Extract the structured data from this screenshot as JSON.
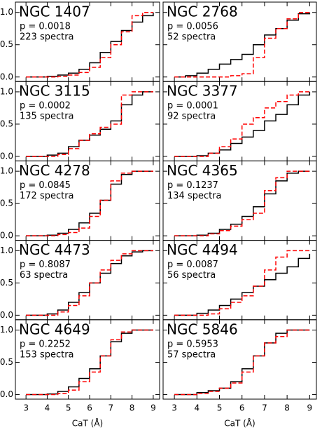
{
  "chart_data": [
    {
      "type": "line",
      "title": "NGC 1407",
      "annotations": [
        "p = 0.0018",
        "223 spectra"
      ],
      "x": [
        3,
        3.5,
        4,
        4.5,
        5,
        5.5,
        6,
        6.5,
        7,
        7.5,
        8,
        8.5,
        9
      ],
      "xlim": [
        2.5,
        9.3
      ],
      "ylim": [
        -0.07,
        1.16
      ],
      "xticks": [
        3,
        4,
        5,
        6,
        7,
        8,
        9
      ],
      "yticks": [
        {
          "value": 0,
          "label": "0.0"
        },
        {
          "value": 0.5,
          "label": "0.5"
        },
        {
          "value": 1,
          "label": "1.0"
        }
      ],
      "series": [
        {
          "color": "#000000",
          "linestyle": "solid",
          "values": [
            0,
            0,
            0.01,
            0.03,
            0.06,
            0.12,
            0.22,
            0.38,
            0.55,
            0.72,
            0.85,
            0.95,
            1
          ]
        },
        {
          "color": "#ff0000",
          "linestyle": "dashed",
          "values": [
            0,
            0,
            0,
            0.01,
            0.03,
            0.07,
            0.15,
            0.3,
            0.5,
            0.7,
            0.95,
            1,
            1
          ]
        }
      ]
    },
    {
      "type": "line",
      "title": "NGC 2768",
      "annotations": [
        "p = 0.0056",
        "52 spectra"
      ],
      "x": [
        3,
        3.5,
        4,
        4.5,
        5,
        5.5,
        6,
        6.5,
        7,
        7.5,
        8,
        8.5,
        9
      ],
      "xlim": [
        2.5,
        9.3
      ],
      "ylim": [
        -0.07,
        1.16
      ],
      "xticks": [
        3,
        4,
        5,
        6,
        7,
        8,
        9
      ],
      "yticks": [
        0,
        0.5,
        1
      ],
      "series": [
        {
          "color": "#000000",
          "linestyle": "solid",
          "values": [
            0,
            0.02,
            0.06,
            0.12,
            0.2,
            0.27,
            0.35,
            0.5,
            0.65,
            0.75,
            0.88,
            0.98,
            1
          ]
        },
        {
          "color": "#ff0000",
          "linestyle": "dashed",
          "values": [
            0,
            0,
            0,
            0,
            0,
            0.02,
            0.05,
            0.3,
            0.6,
            0.75,
            0.9,
            1,
            1
          ]
        }
      ]
    },
    {
      "type": "line",
      "title": "NGC 3115",
      "annotations": [
        "p = 0.0002",
        "135 spectra"
      ],
      "x": [
        3,
        3.5,
        4,
        4.5,
        5,
        5.5,
        6,
        6.5,
        7,
        7.5,
        8,
        8.5,
        9
      ],
      "xlim": [
        2.5,
        9.3
      ],
      "ylim": [
        -0.07,
        1.16
      ],
      "xticks": [
        3,
        4,
        5,
        6,
        7,
        8,
        9
      ],
      "yticks": [
        {
          "value": 0,
          "label": "0.0"
        },
        {
          "value": 0.5,
          "label": "0.5"
        },
        {
          "value": 1,
          "label": "1.0"
        }
      ],
      "series": [
        {
          "color": "#000000",
          "linestyle": "solid",
          "values": [
            0,
            0,
            0.02,
            0.05,
            0.15,
            0.25,
            0.33,
            0.42,
            0.55,
            0.8,
            0.95,
            1,
            1
          ]
        },
        {
          "color": "#ff0000",
          "linestyle": "dashed",
          "values": [
            0,
            0,
            0,
            0.03,
            0.12,
            0.25,
            0.35,
            0.45,
            0.5,
            0.95,
            1,
            1,
            1
          ]
        }
      ]
    },
    {
      "type": "line",
      "title": "NGC 3377",
      "annotations": [
        "p = 0.0001",
        "92 spectra"
      ],
      "x": [
        3,
        3.5,
        4,
        4.5,
        5,
        5.5,
        6,
        6.5,
        7,
        7.5,
        8,
        8.5,
        9
      ],
      "xlim": [
        2.5,
        9.3
      ],
      "ylim": [
        -0.07,
        1.16
      ],
      "xticks": [
        3,
        4,
        5,
        6,
        7,
        8,
        9
      ],
      "yticks": [
        0,
        0.5,
        1
      ],
      "series": [
        {
          "color": "#000000",
          "linestyle": "solid",
          "values": [
            0,
            0,
            0.01,
            0.05,
            0.1,
            0.2,
            0.3,
            0.4,
            0.55,
            0.65,
            0.8,
            0.95,
            1
          ]
        },
        {
          "color": "#ff0000",
          "linestyle": "dashed",
          "values": [
            0,
            0,
            0,
            0.05,
            0.15,
            0.27,
            0.5,
            0.6,
            0.75,
            0.85,
            0.95,
            1,
            1
          ]
        }
      ]
    },
    {
      "type": "line",
      "title": "NGC 4278",
      "annotations": [
        "p = 0.0845",
        "172 spectra"
      ],
      "x": [
        3,
        3.5,
        4,
        4.5,
        5,
        5.5,
        6,
        6.5,
        7,
        7.5,
        8,
        8.5,
        9
      ],
      "xlim": [
        2.5,
        9.3
      ],
      "ylim": [
        -0.07,
        1.16
      ],
      "xticks": [
        3,
        4,
        5,
        6,
        7,
        8,
        9
      ],
      "yticks": [
        {
          "value": 0,
          "label": "0.0"
        },
        {
          "value": 0.5,
          "label": "0.5"
        },
        {
          "value": 1,
          "label": "1.0"
        }
      ],
      "series": [
        {
          "color": "#000000",
          "linestyle": "solid",
          "values": [
            0,
            0,
            0.01,
            0.04,
            0.1,
            0.2,
            0.35,
            0.55,
            0.8,
            0.95,
            1,
            1,
            1
          ]
        },
        {
          "color": "#ff0000",
          "linestyle": "dashed",
          "values": [
            0,
            0,
            0,
            0.02,
            0.05,
            0.12,
            0.3,
            0.55,
            0.85,
            0.97,
            1,
            1,
            1
          ]
        }
      ]
    },
    {
      "type": "line",
      "title": "NGC 4365",
      "annotations": [
        "p = 0.1237",
        "134 spectra"
      ],
      "x": [
        3,
        3.5,
        4,
        4.5,
        5,
        5.5,
        6,
        6.5,
        7,
        7.5,
        8,
        8.5,
        9
      ],
      "xlim": [
        2.5,
        9.3
      ],
      "ylim": [
        -0.07,
        1.16
      ],
      "xticks": [
        3,
        4,
        5,
        6,
        7,
        8,
        9
      ],
      "yticks": [
        0,
        0.5,
        1
      ],
      "series": [
        {
          "color": "#000000",
          "linestyle": "solid",
          "values": [
            0,
            0,
            0.01,
            0.04,
            0.1,
            0.18,
            0.3,
            0.45,
            0.65,
            0.85,
            0.97,
            1,
            1
          ]
        },
        {
          "color": "#ff0000",
          "linestyle": "dashed",
          "values": [
            0,
            0,
            0,
            0.03,
            0.08,
            0.15,
            0.25,
            0.35,
            0.7,
            0.9,
            1,
            1,
            1
          ]
        }
      ]
    },
    {
      "type": "line",
      "title": "NGC 4473",
      "annotations": [
        "p = 0.8087",
        "63 spectra"
      ],
      "x": [
        3,
        3.5,
        4,
        4.5,
        5,
        5.5,
        6,
        6.5,
        7,
        7.5,
        8,
        8.5,
        9
      ],
      "xlim": [
        2.5,
        9.3
      ],
      "ylim": [
        -0.07,
        1.16
      ],
      "xticks": [
        3,
        4,
        5,
        6,
        7,
        8,
        9
      ],
      "yticks": [
        {
          "value": 0,
          "label": "0.0"
        },
        {
          "value": 0.5,
          "label": "0.5"
        },
        {
          "value": 1,
          "label": "1.0"
        }
      ],
      "series": [
        {
          "color": "#000000",
          "linestyle": "solid",
          "values": [
            0,
            0,
            0.02,
            0.08,
            0.2,
            0.35,
            0.5,
            0.65,
            0.8,
            0.92,
            0.98,
            1,
            1
          ]
        },
        {
          "color": "#ff0000",
          "linestyle": "dashed",
          "values": [
            0,
            0,
            0,
            0.05,
            0.15,
            0.3,
            0.5,
            0.7,
            0.85,
            0.95,
            1,
            1,
            1
          ]
        }
      ]
    },
    {
      "type": "line",
      "title": "NGC 4494",
      "annotations": [
        "p = 0.0087",
        "56 spectra"
      ],
      "x": [
        3,
        3.5,
        4,
        4.5,
        5,
        5.5,
        6,
        6.5,
        7,
        7.5,
        8,
        8.5,
        9
      ],
      "xlim": [
        2.5,
        9.3
      ],
      "ylim": [
        -0.07,
        1.16
      ],
      "xticks": [
        3,
        4,
        5,
        6,
        7,
        8,
        9
      ],
      "yticks": [
        0,
        0.5,
        1
      ],
      "series": [
        {
          "color": "#000000",
          "linestyle": "solid",
          "values": [
            0,
            0,
            0.03,
            0.08,
            0.15,
            0.25,
            0.35,
            0.45,
            0.55,
            0.65,
            0.75,
            0.88,
            0.95
          ]
        },
        {
          "color": "#ff0000",
          "linestyle": "dashed",
          "values": [
            0,
            0,
            0,
            0.02,
            0.1,
            0.2,
            0.3,
            0.45,
            0.7,
            0.9,
            1,
            1,
            1
          ]
        }
      ]
    },
    {
      "type": "line",
      "title": "NGC 4649",
      "annotations": [
        "p = 0.2252",
        "153 spectra"
      ],
      "x": [
        3,
        3.5,
        4,
        4.5,
        5,
        5.5,
        6,
        6.5,
        7,
        7.5,
        8,
        8.5,
        9
      ],
      "xlim": [
        2.5,
        9.3
      ],
      "ylim": [
        -0.07,
        1.16
      ],
      "xticks": [
        3,
        4,
        5,
        6,
        7,
        8,
        9
      ],
      "xlabel": "CaT (Å)",
      "yticks": [
        {
          "value": 0,
          "label": "0.0"
        },
        {
          "value": 0.5,
          "label": "0.5"
        },
        {
          "value": 1,
          "label": "1.0"
        }
      ],
      "series": [
        {
          "color": "#000000",
          "linestyle": "solid",
          "values": [
            0,
            0,
            0.01,
            0.05,
            0.12,
            0.25,
            0.4,
            0.6,
            0.82,
            0.95,
            1,
            1,
            1
          ]
        },
        {
          "color": "#ff0000",
          "linestyle": "dashed",
          "values": [
            0,
            0,
            0,
            0.02,
            0.07,
            0.2,
            0.35,
            0.6,
            0.85,
            0.97,
            1,
            1,
            1
          ]
        }
      ]
    },
    {
      "type": "line",
      "title": "NGC 5846",
      "annotations": [
        "p = 0.5953",
        "57 spectra"
      ],
      "x": [
        3,
        3.5,
        4,
        4.5,
        5,
        5.5,
        6,
        6.5,
        7,
        7.5,
        8,
        8.5,
        9
      ],
      "xlim": [
        2.5,
        9.3
      ],
      "ylim": [
        -0.07,
        1.16
      ],
      "xticks": [
        3,
        4,
        5,
        6,
        7,
        8,
        9
      ],
      "xlabel": "CaT (Å)",
      "yticks": [
        0,
        0.5,
        1
      ],
      "series": [
        {
          "color": "#000000",
          "linestyle": "solid",
          "values": [
            0,
            0,
            0.03,
            0.06,
            0.1,
            0.2,
            0.4,
            0.6,
            0.8,
            0.95,
            1,
            1,
            1
          ]
        },
        {
          "color": "#ff0000",
          "linestyle": "dashed",
          "values": [
            0,
            0,
            0.02,
            0.05,
            0.1,
            0.18,
            0.35,
            0.6,
            0.8,
            0.9,
            1,
            1,
            1
          ]
        }
      ]
    }
  ]
}
